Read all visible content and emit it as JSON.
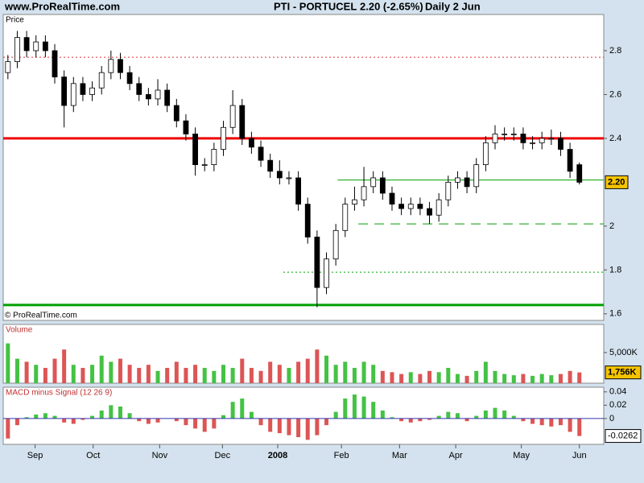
{
  "header": {
    "site": "www.ProRealTime.com",
    "symbol": "PTI - PORTUCEL",
    "quote": "2.20 (-2.65%)",
    "period": "Daily  2 Jun",
    "copyright": "© ProRealTime.com"
  },
  "chart_data": [
    {
      "type": "candlestick",
      "title": "Price",
      "x": [
        0,
        1,
        2,
        3,
        4,
        5,
        6,
        7,
        8,
        9,
        10,
        11,
        12,
        13,
        14,
        15,
        16,
        17,
        18,
        19,
        20,
        21,
        22,
        23,
        24,
        25,
        26,
        27,
        28,
        29,
        30,
        31,
        32,
        33,
        34,
        35,
        36,
        37,
        38,
        39,
        40,
        41,
        42,
        43,
        44,
        45,
        46,
        47,
        48,
        49,
        50,
        51,
        52,
        53,
        54,
        55,
        56,
        57,
        58,
        59,
        60,
        61
      ],
      "open": [
        2.7,
        2.75,
        2.86,
        2.8,
        2.84,
        2.8,
        2.68,
        2.55,
        2.65,
        2.6,
        2.63,
        2.7,
        2.76,
        2.7,
        2.65,
        2.6,
        2.58,
        2.62,
        2.55,
        2.48,
        2.42,
        2.28,
        2.28,
        2.35,
        2.45,
        2.55,
        2.4,
        2.36,
        2.3,
        2.25,
        2.22,
        2.22,
        2.1,
        1.95,
        1.72,
        1.85,
        1.98,
        2.1,
        2.12,
        2.18,
        2.22,
        2.15,
        2.1,
        2.08,
        2.1,
        2.08,
        2.05,
        2.12,
        2.2,
        2.22,
        2.18,
        2.28,
        2.38,
        2.42,
        2.42,
        2.42,
        2.38,
        2.38,
        2.4,
        2.4,
        2.35,
        2.28
      ],
      "high": [
        2.78,
        2.89,
        2.89,
        2.87,
        2.87,
        2.83,
        2.71,
        2.68,
        2.68,
        2.66,
        2.73,
        2.8,
        2.79,
        2.73,
        2.68,
        2.63,
        2.67,
        2.65,
        2.58,
        2.51,
        2.45,
        2.31,
        2.38,
        2.48,
        2.62,
        2.58,
        2.43,
        2.39,
        2.33,
        2.3,
        2.25,
        2.25,
        2.13,
        1.98,
        1.88,
        2.01,
        2.13,
        2.18,
        2.27,
        2.25,
        2.25,
        2.18,
        2.13,
        2.13,
        2.13,
        2.11,
        2.15,
        2.23,
        2.25,
        2.25,
        2.31,
        2.41,
        2.46,
        2.45,
        2.45,
        2.45,
        2.41,
        2.43,
        2.44,
        2.43,
        2.38,
        2.29
      ],
      "low": [
        2.67,
        2.72,
        2.77,
        2.77,
        2.77,
        2.65,
        2.45,
        2.52,
        2.57,
        2.57,
        2.6,
        2.67,
        2.67,
        2.62,
        2.57,
        2.55,
        2.55,
        2.52,
        2.45,
        2.39,
        2.23,
        2.25,
        2.25,
        2.32,
        2.42,
        2.37,
        2.33,
        2.27,
        2.22,
        2.19,
        2.19,
        2.07,
        1.92,
        1.63,
        1.69,
        1.82,
        1.95,
        2.07,
        2.09,
        2.15,
        2.12,
        2.07,
        2.05,
        2.05,
        2.05,
        2.01,
        2.02,
        2.09,
        2.17,
        2.15,
        2.15,
        2.25,
        2.35,
        2.39,
        2.39,
        2.35,
        2.35,
        2.35,
        2.37,
        2.32,
        2.22,
        2.19
      ],
      "close": [
        2.75,
        2.86,
        2.8,
        2.84,
        2.8,
        2.68,
        2.55,
        2.65,
        2.6,
        2.63,
        2.7,
        2.76,
        2.7,
        2.65,
        2.6,
        2.58,
        2.62,
        2.55,
        2.48,
        2.42,
        2.28,
        2.28,
        2.35,
        2.45,
        2.55,
        2.4,
        2.36,
        2.3,
        2.25,
        2.22,
        2.22,
        2.1,
        1.95,
        1.72,
        1.85,
        1.98,
        2.1,
        2.12,
        2.18,
        2.22,
        2.15,
        2.1,
        2.08,
        2.1,
        2.08,
        2.05,
        2.12,
        2.2,
        2.22,
        2.18,
        2.28,
        2.38,
        2.42,
        2.42,
        2.42,
        2.38,
        2.38,
        2.4,
        2.4,
        2.35,
        2.25,
        2.2
      ],
      "up_color": "#ffffff",
      "down_color": "#000000",
      "xlim": [
        -0.5,
        63.6
      ],
      "ylim": [
        1.57,
        2.965
      ],
      "xticks": [
        {
          "value": 2.9,
          "label": "Sep"
        },
        {
          "value": 9.1,
          "label": "Oct"
        },
        {
          "value": 16.2,
          "label": "Nov"
        },
        {
          "value": 22.9,
          "label": "Dec"
        },
        {
          "value": 28.8,
          "label": "2008"
        },
        {
          "value": 35.6,
          "label": "Feb"
        },
        {
          "value": 41.8,
          "label": "Mar"
        },
        {
          "value": 47.8,
          "label": "Apr"
        },
        {
          "value": 54.8,
          "label": "May"
        },
        {
          "value": 61,
          "label": "Jun"
        }
      ],
      "yticks": [
        1.6,
        1.8,
        2,
        2.4,
        2.6,
        2.8
      ],
      "last_label": {
        "value": 2.2,
        "label": "2.20"
      },
      "levels": [
        {
          "value": 2.77,
          "start": -0.5,
          "color": "#e03030",
          "style": "dotted",
          "width": 1
        },
        {
          "value": 2.4,
          "start": -0.5,
          "color": "#ee0000",
          "style": "solid",
          "width": 3
        },
        {
          "value": 2.21,
          "start": 35.2,
          "color": "#00a000",
          "style": "solid",
          "width": 1
        },
        {
          "value": 2.01,
          "start": 37.4,
          "color": "#00a000",
          "style": "dashed",
          "width": 1
        },
        {
          "value": 1.79,
          "start": 29.4,
          "color": "#00a000",
          "style": "dotted",
          "width": 1
        },
        {
          "value": 1.64,
          "start": -0.5,
          "color": "#00a000",
          "style": "solid",
          "width": 3
        }
      ]
    },
    {
      "type": "bar",
      "title": "Volume",
      "values": [
        6500,
        4000,
        3500,
        3000,
        2500,
        4000,
        5500,
        3000,
        2500,
        3000,
        4500,
        3500,
        4000,
        3000,
        2500,
        3000,
        2000,
        2500,
        3500,
        2500,
        3000,
        2500,
        2000,
        3000,
        2500,
        4000,
        2500,
        2000,
        3500,
        3000,
        2500,
        3500,
        4000,
        5500,
        4500,
        3000,
        3500,
        2500,
        3500,
        3000,
        2000,
        1800,
        1500,
        1800,
        1500,
        2000,
        1800,
        2500,
        1500,
        1200,
        2000,
        3500,
        2000,
        1500,
        1300,
        1500,
        1200,
        1500,
        1300,
        1500,
        2000,
        1756
      ],
      "up_color": "#44c244",
      "down_color": "#dd5555",
      "ylim": [
        0,
        9600
      ],
      "yticks": [
        {
          "value": 5000,
          "label": "5,000K"
        }
      ],
      "last_label": {
        "value": 1756,
        "label": "1,756K"
      }
    },
    {
      "type": "bar",
      "title": "MACD minus Signal (12 26 9)",
      "values": [
        -0.03,
        -0.01,
        0.002,
        0.006,
        0.008,
        0.004,
        -0.006,
        -0.008,
        -0.002,
        0.004,
        0.012,
        0.02,
        0.018,
        0.008,
        -0.004,
        -0.008,
        -0.006,
        0.0,
        -0.004,
        -0.01,
        -0.015,
        -0.02,
        -0.015,
        0.005,
        0.025,
        0.03,
        0.01,
        -0.01,
        -0.02,
        -0.022,
        -0.025,
        -0.028,
        -0.032,
        -0.025,
        -0.01,
        0.01,
        0.03,
        0.036,
        0.033,
        0.025,
        0.012,
        0.002,
        -0.004,
        -0.006,
        -0.004,
        -0.002,
        0.004,
        0.01,
        0.008,
        -0.004,
        0.004,
        0.012,
        0.016,
        0.012,
        0.004,
        -0.004,
        -0.008,
        -0.01,
        -0.012,
        -0.01,
        -0.02,
        -0.0262
      ],
      "up_color": "#44c244",
      "down_color": "#dd5555",
      "zero_color": "#3333aa",
      "ylim": [
        -0.0388,
        0.047
      ],
      "yticks": [
        0,
        0.02,
        0.04
      ]
    }
  ]
}
